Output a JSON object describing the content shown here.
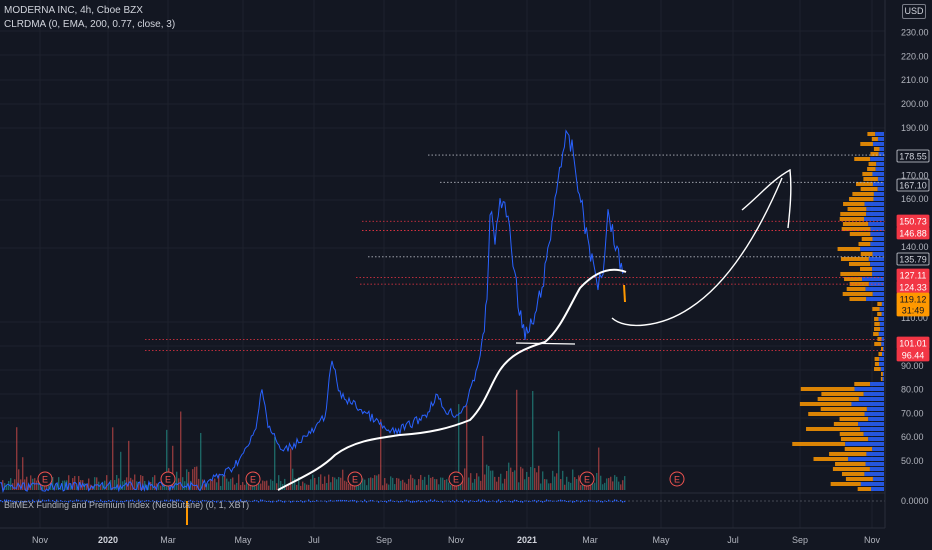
{
  "header": {
    "symbol": "MODERNA INC, 4h, Cboe BZX",
    "indicator": "CLRDMA (0, EMA, 200, 0.77, close, 3)",
    "lower_indicator": "BitMEX Funding and Premium Index (NeoButane) (0, 1, XBT)"
  },
  "currency": "USD",
  "price_axis": {
    "ticks": [
      "230.00",
      "220.00",
      "210.00",
      "200.00",
      "190.00",
      "170.00",
      "160.00",
      "140.00",
      "110.00",
      "100.00",
      "90.00",
      "80.00",
      "70.00",
      "60.00",
      "50.00"
    ],
    "lower_tick": "0.0000"
  },
  "time_axis": {
    "labels": [
      "Nov",
      "2020",
      "Mar",
      "May",
      "Jul",
      "Sep",
      "Nov",
      "2021",
      "Mar",
      "May",
      "Jul",
      "Sep",
      "Nov"
    ]
  },
  "price_labels": [
    {
      "text": "178.55",
      "color": "#d1d4dc",
      "bg": "#131722",
      "border": "#d1d4dc"
    },
    {
      "text": "167.10",
      "color": "#d1d4dc",
      "bg": "#131722",
      "border": "#d1d4dc"
    },
    {
      "text": "150.73",
      "color": "#ffffff",
      "bg": "#f23645",
      "border": "#f23645"
    },
    {
      "text": "146.88",
      "color": "#ffffff",
      "bg": "#f23645",
      "border": "#f23645"
    },
    {
      "text": "135.79",
      "color": "#d1d4dc",
      "bg": "#131722",
      "border": "#d1d4dc"
    },
    {
      "text": "127.11",
      "color": "#ffffff",
      "bg": "#f23645",
      "border": "#f23645"
    },
    {
      "text": "124.33",
      "color": "#ffffff",
      "bg": "#f23645",
      "border": "#f23645"
    },
    {
      "text": "119.12",
      "color": "#131722",
      "bg": "#ff9800",
      "border": "#ff9800"
    },
    {
      "text": "31:49",
      "color": "#131722",
      "bg": "#ff9800",
      "border": "#ff9800"
    },
    {
      "text": "101.01",
      "color": "#ffffff",
      "bg": "#f23645",
      "border": "#f23645"
    },
    {
      "text": "96.44",
      "color": "#ffffff",
      "bg": "#f23645",
      "border": "#f23645"
    }
  ],
  "earnings_marker": "E",
  "colors": {
    "background": "#131722",
    "price_line": "#2962ff",
    "ema_line": "#ffffff",
    "up_volume": "#26a69a",
    "down_volume": "#ef5350",
    "resistance_red": "#f23645",
    "level_white": "#b2b5be",
    "profile_orange": "#ff9800",
    "profile_blue": "#2962ff"
  }
}
